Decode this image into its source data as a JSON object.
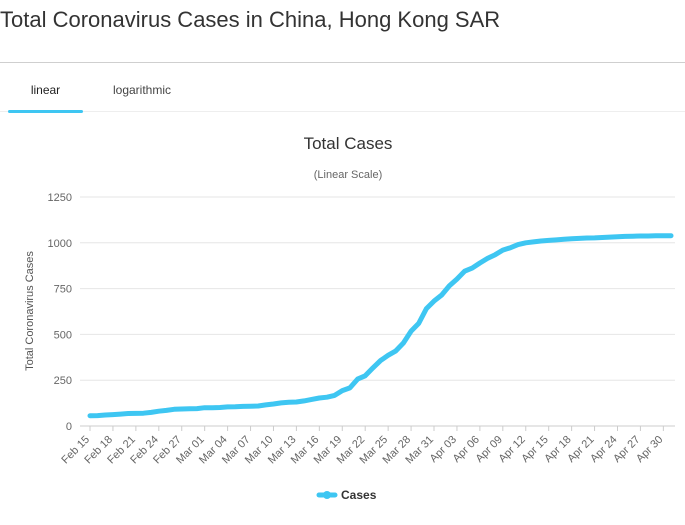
{
  "page": {
    "title": "Total Coronavirus Cases in China, Hong Kong SAR"
  },
  "tabs": [
    {
      "label": "linear",
      "active": true
    },
    {
      "label": "logarithmic",
      "active": false
    }
  ],
  "colors": {
    "accent": "#3ec6f2",
    "series": "#3ec6f2",
    "grid": "#e6e6e6",
    "text": "#333333",
    "tick": "#666666"
  },
  "chart_data": {
    "type": "line",
    "title": "Total Cases",
    "subtitle": "(Linear Scale)",
    "xlabel": "",
    "ylabel": "Total Coronavirus Cases",
    "ylim": [
      0,
      1250
    ],
    "yticks": [
      0,
      250,
      500,
      750,
      1000,
      1250
    ],
    "grid": true,
    "legend_position": "bottom-center",
    "x_tick_labels": [
      "Feb 15",
      "Feb 18",
      "Feb 21",
      "Feb 24",
      "Feb 27",
      "Mar 01",
      "Mar 04",
      "Mar 07",
      "Mar 10",
      "Mar 13",
      "Mar 16",
      "Mar 19",
      "Mar 22",
      "Mar 25",
      "Mar 28",
      "Mar 31",
      "Apr 03",
      "Apr 06",
      "Apr 09",
      "Apr 12",
      "Apr 15",
      "Apr 18",
      "Apr 21",
      "Apr 24",
      "Apr 27",
      "Apr 30"
    ],
    "x": [
      "Feb 15",
      "Feb 16",
      "Feb 17",
      "Feb 18",
      "Feb 19",
      "Feb 20",
      "Feb 21",
      "Feb 22",
      "Feb 23",
      "Feb 24",
      "Feb 25",
      "Feb 26",
      "Feb 27",
      "Feb 28",
      "Feb 29",
      "Mar 01",
      "Mar 02",
      "Mar 03",
      "Mar 04",
      "Mar 05",
      "Mar 06",
      "Mar 07",
      "Mar 08",
      "Mar 09",
      "Mar 10",
      "Mar 11",
      "Mar 12",
      "Mar 13",
      "Mar 14",
      "Mar 15",
      "Mar 16",
      "Mar 17",
      "Mar 18",
      "Mar 19",
      "Mar 20",
      "Mar 21",
      "Mar 22",
      "Mar 23",
      "Mar 24",
      "Mar 25",
      "Mar 26",
      "Mar 27",
      "Mar 28",
      "Mar 29",
      "Mar 30",
      "Mar 31",
      "Apr 01",
      "Apr 02",
      "Apr 03",
      "Apr 04",
      "Apr 05",
      "Apr 06",
      "Apr 07",
      "Apr 08",
      "Apr 09",
      "Apr 10",
      "Apr 11",
      "Apr 12",
      "Apr 13",
      "Apr 14",
      "Apr 15",
      "Apr 16",
      "Apr 17",
      "Apr 18",
      "Apr 19",
      "Apr 20",
      "Apr 21",
      "Apr 22",
      "Apr 23",
      "Apr 24",
      "Apr 25",
      "Apr 26",
      "Apr 27",
      "Apr 28",
      "Apr 29",
      "Apr 30",
      "May 01"
    ],
    "series": [
      {
        "name": "Cases",
        "values": [
          56,
          57,
          60,
          62,
          65,
          68,
          69,
          70,
          74,
          81,
          85,
          91,
          93,
          94,
          95,
          100,
          100,
          101,
          104,
          105,
          107,
          108,
          109,
          115,
          120,
          126,
          130,
          131,
          137,
          145,
          153,
          157,
          167,
          193,
          208,
          256,
          274,
          317,
          357,
          386,
          410,
          453,
          518,
          560,
          641,
          682,
          715,
          765,
          802,
          845,
          862,
          890,
          915,
          935,
          960,
          973,
          990,
          1000,
          1005,
          1010,
          1013,
          1016,
          1019,
          1022,
          1024,
          1026,
          1027,
          1029,
          1031,
          1033,
          1035,
          1036,
          1037,
          1037,
          1038,
          1038,
          1039
        ]
      }
    ]
  }
}
